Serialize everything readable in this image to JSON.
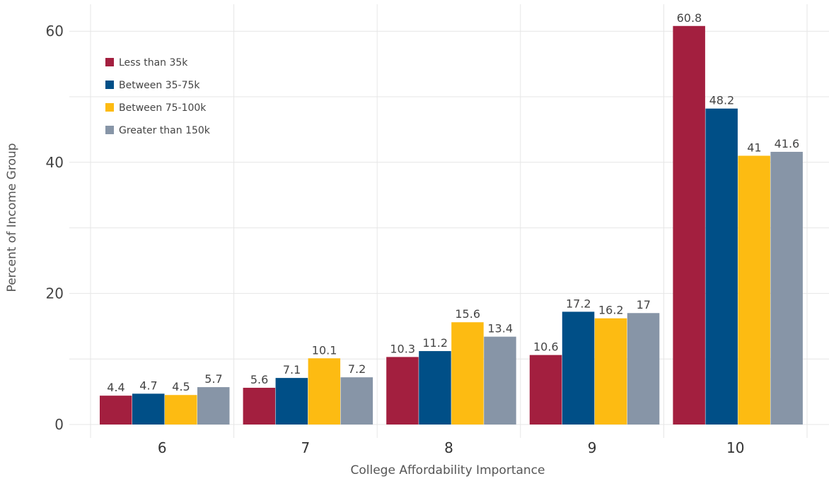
{
  "chart_data": {
    "type": "bar",
    "title": "",
    "xlabel": "College Affordability Importance",
    "ylabel": "Percent of Income Group",
    "categories": [
      "6",
      "7",
      "8",
      "9",
      "10"
    ],
    "y_ticks": [
      "0",
      "20",
      "40",
      "60"
    ],
    "ylim": [
      0,
      62
    ],
    "grid": true,
    "legend_position": "top-left",
    "series": [
      {
        "name": "Less than 35k",
        "color": "#a31f3f",
        "values": [
          4.4,
          5.6,
          10.3,
          10.6,
          60.8
        ],
        "labels": [
          "4.4",
          "5.6",
          "10.3",
          "10.6",
          "60.8"
        ]
      },
      {
        "name": "Between 35-75k",
        "color": "#004f87",
        "values": [
          4.7,
          7.1,
          11.2,
          17.2,
          48.2
        ],
        "labels": [
          "4.7",
          "7.1",
          "11.2",
          "17.2",
          "48.2"
        ]
      },
      {
        "name": "Between 75-100k",
        "color": "#fdbb12",
        "values": [
          4.5,
          10.1,
          15.6,
          16.2,
          41
        ],
        "labels": [
          "4.5",
          "10.1",
          "15.6",
          "16.2",
          "41"
        ]
      },
      {
        "name": "Greater than 150k",
        "color": "#8795a7",
        "values": [
          5.7,
          7.2,
          13.4,
          17,
          41.6
        ],
        "labels": [
          "5.7",
          "7.2",
          "13.4",
          "17",
          "41.6"
        ]
      }
    ]
  }
}
